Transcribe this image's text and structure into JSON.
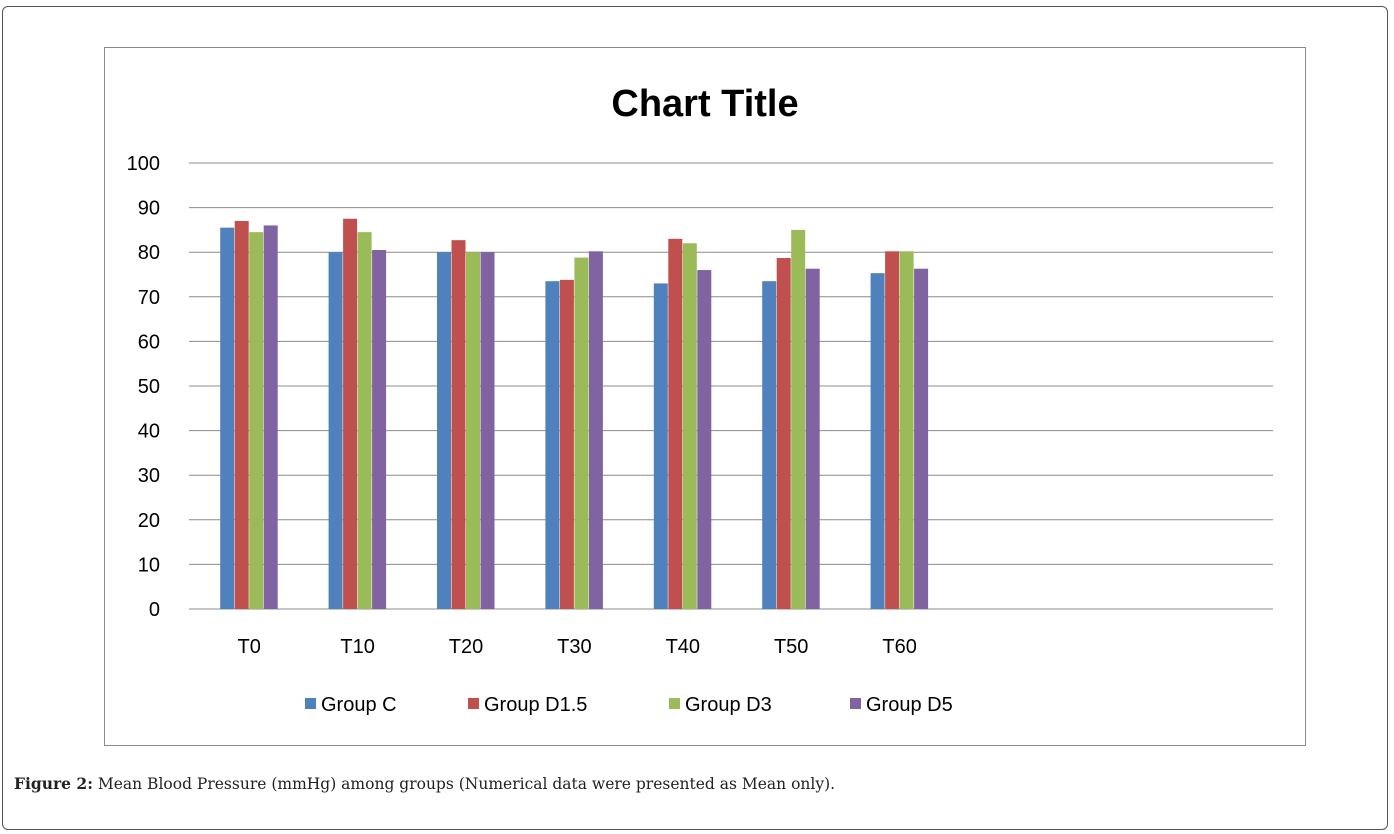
{
  "caption": {
    "label": "Figure 2:",
    "text": " Mean Blood Pressure (mmHg) among groups (Numerical data were presented as Mean only)."
  },
  "chart_data": {
    "type": "bar",
    "title": "Chart Title",
    "xlabel": "",
    "ylabel": "",
    "ylim": [
      0,
      100
    ],
    "yticks": [
      "0",
      "10",
      "20",
      "30",
      "40",
      "50",
      "60",
      "70",
      "80",
      "90",
      "100"
    ],
    "grid": true,
    "legend_position": "bottom",
    "categories": [
      "T0",
      "T10",
      "T20",
      "T30",
      "T40",
      "T50",
      "T60"
    ],
    "series": [
      {
        "name": "Group C",
        "color": "#4f81bd",
        "values": [
          85.5,
          80,
          80,
          73.5,
          73,
          73.5,
          75.3
        ]
      },
      {
        "name": "Group D1.5",
        "color": "#c0504d",
        "values": [
          87,
          87.5,
          82.7,
          73.8,
          83,
          78.7,
          80.2
        ]
      },
      {
        "name": "Group D3",
        "color": "#9bbb59",
        "values": [
          84.5,
          84.5,
          80,
          78.8,
          82,
          85,
          80.2
        ]
      },
      {
        "name": "Group D5",
        "color": "#8064a2",
        "values": [
          86,
          80.5,
          80,
          80.2,
          76,
          76.3,
          76.3
        ]
      }
    ]
  }
}
